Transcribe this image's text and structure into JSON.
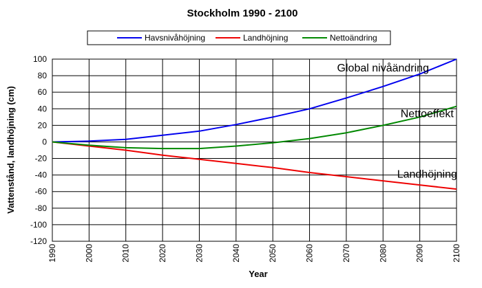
{
  "chart_data": {
    "type": "line",
    "title": "Stockholm 1990 - 2100",
    "xlabel": "Year",
    "ylabel": "Vattenstånd, landhöjning (cm)",
    "xlim": [
      1990,
      2100
    ],
    "ylim": [
      -120,
      100
    ],
    "x_ticks": [
      1990,
      2000,
      2010,
      2020,
      2030,
      2040,
      2050,
      2060,
      2070,
      2080,
      2090,
      2100
    ],
    "y_ticks": [
      100,
      80,
      60,
      40,
      20,
      0,
      -20,
      -40,
      -60,
      -80,
      -100,
      -120
    ],
    "grid": true,
    "legend_position": "top",
    "x": [
      1990,
      2000,
      2010,
      2020,
      2030,
      2040,
      2050,
      2060,
      2070,
      2080,
      2090,
      2100
    ],
    "series": [
      {
        "name": "Havsnivåhöjning",
        "color": "#0000ee",
        "values": [
          0,
          1,
          3,
          8,
          13,
          21,
          30,
          40,
          53,
          67,
          82,
          100
        ]
      },
      {
        "name": "Landhöjning",
        "color": "#ee0000",
        "values": [
          0,
          -5,
          -10,
          -16,
          -21,
          -26,
          -31,
          -37,
          -42,
          -47,
          -52,
          -57
        ]
      },
      {
        "name": "Nettoändring",
        "color": "#008800",
        "values": [
          0,
          -4,
          -7,
          -8,
          -8,
          -5,
          -1,
          4,
          11,
          20,
          30,
          43
        ]
      }
    ],
    "annotations": [
      {
        "text": "Global nivåändring",
        "x": 2080,
        "y": 85
      },
      {
        "text": "Nettoeffekt",
        "x": 2092,
        "y": 30
      },
      {
        "text": "Landhöjning",
        "x": 2092,
        "y": -43
      }
    ]
  }
}
